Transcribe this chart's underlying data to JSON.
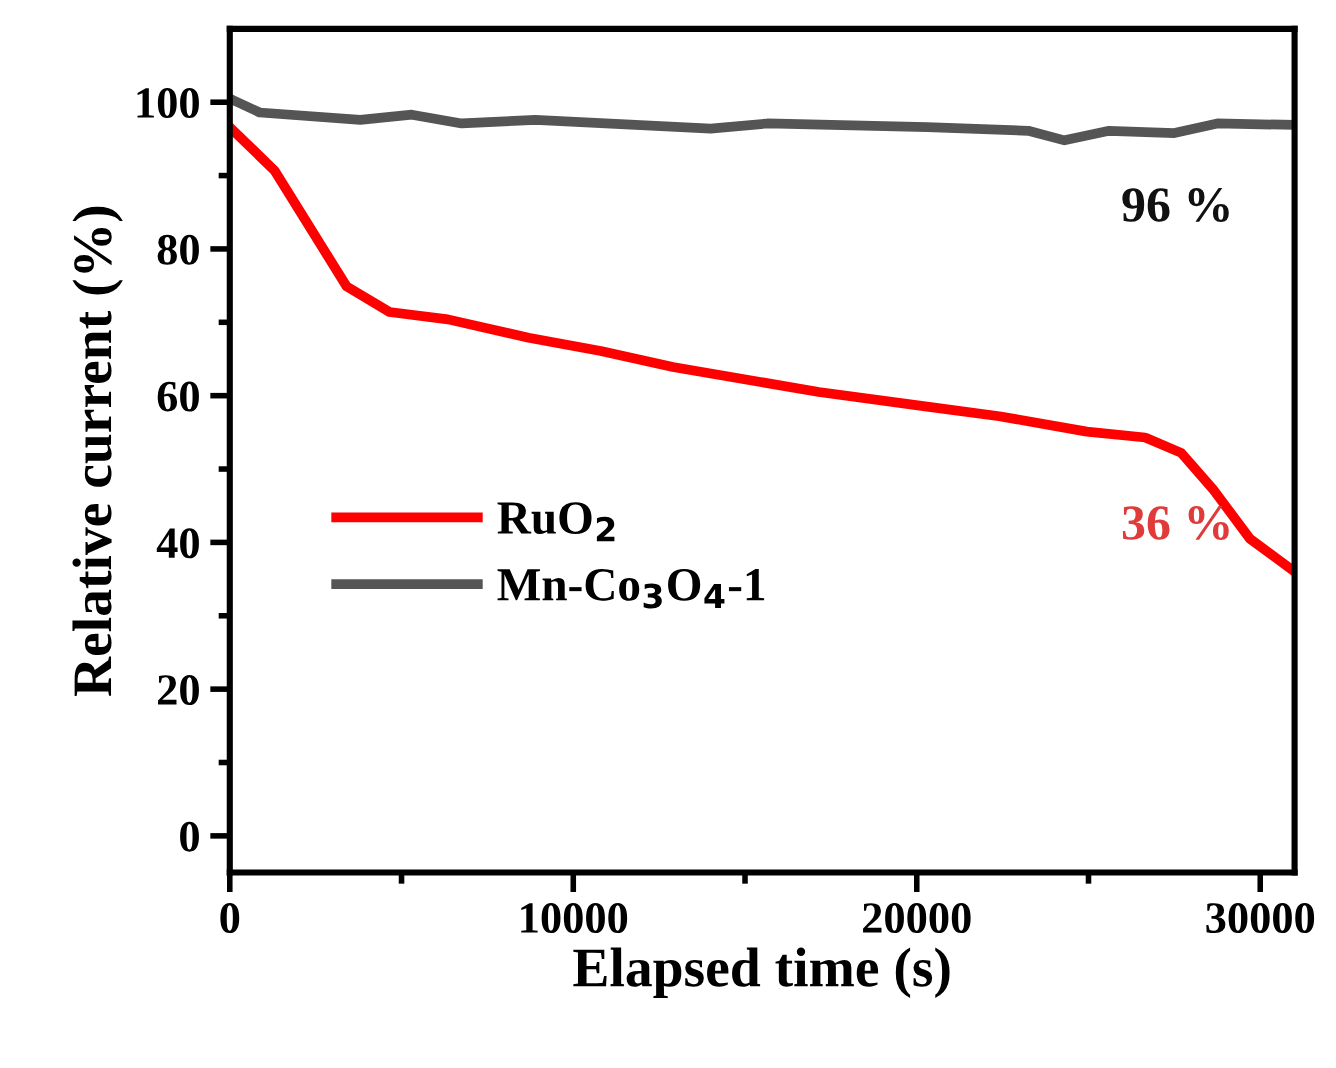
{
  "chart_data": {
    "type": "line",
    "xlabel": "Elapsed time (s)",
    "ylabel": "Relative current (%)",
    "xlim": [
      0,
      31000
    ],
    "ylim": [
      -5,
      110
    ],
    "xticks": [
      0,
      {
        "value": 5000,
        "label": null
      },
      10000,
      {
        "value": 15000,
        "label": null
      },
      20000,
      {
        "value": 25000,
        "label": null
      },
      30000
    ],
    "yticks": [
      0,
      {
        "value": 10,
        "label": null
      },
      20,
      {
        "value": 30,
        "label": null
      },
      40,
      {
        "value": 50,
        "label": null
      },
      60,
      {
        "value": 70,
        "label": null
      },
      80,
      {
        "value": 90,
        "label": null
      },
      100
    ],
    "grid": false,
    "legend": "bottom left",
    "marker": "none",
    "line_style": "solid",
    "series": [
      {
        "name": "RuO$_{2}$",
        "color": "#ff0000",
        "x": [
          0,
          1300,
          3400,
          4650,
          6350,
          8700,
          10800,
          12900,
          17150,
          20300,
          22400,
          24950,
          26650,
          27700,
          28650,
          29700,
          31000
        ],
        "values": [
          96.6,
          90.7,
          74.9,
          71.4,
          70.4,
          67.9,
          66.1,
          63.9,
          60.5,
          58.5,
          57.2,
          55.1,
          54.3,
          52.2,
          47.1,
          40.5,
          36
        ]
      },
      {
        "name": "Mn-Co$_{3}$O$_{4}$-1",
        "color": "#555555",
        "x": [
          0,
          870,
          3800,
          5300,
          6750,
          8900,
          14000,
          15650,
          20300,
          23250,
          24300,
          25600,
          27500,
          28750,
          31000
        ],
        "values": [
          100.5,
          98.6,
          97.6,
          98.3,
          97.1,
          97.6,
          96.4,
          97.1,
          96.6,
          96.1,
          94.8,
          96.1,
          95.8,
          97.1,
          96.9
        ]
      }
    ],
    "annotations": [
      {
        "text": "36 %",
        "x": 31000,
        "y": 36
      },
      {
        "text": "96 %",
        "x": 31000,
        "y": 96
      }
    ]
  }
}
